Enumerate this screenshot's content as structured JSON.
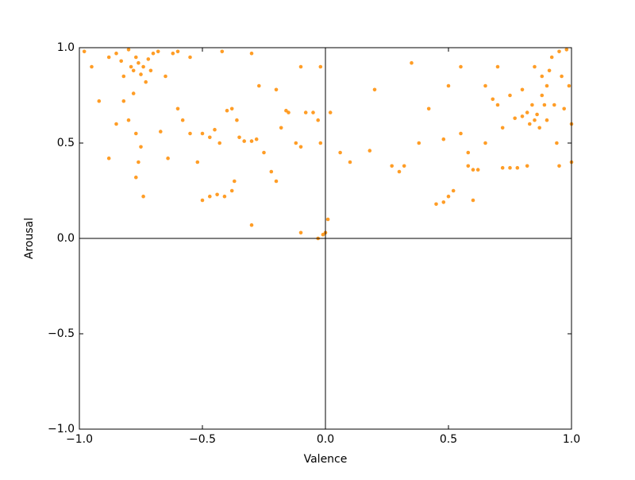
{
  "chart_data": {
    "type": "scatter",
    "x_label": "Valence",
    "y_label": "Arousal",
    "color": "#ff8c00",
    "xlim": [
      -1,
      1
    ],
    "ylim": [
      -1,
      1
    ],
    "xticks": [
      {
        "value": -1,
        "label": "−1.0"
      },
      {
        "value": -0.5,
        "label": "−0.5"
      },
      {
        "value": 0,
        "label": "0.0"
      },
      {
        "value": 0.5,
        "label": "0.5"
      },
      {
        "value": 1,
        "label": "1.0"
      }
    ],
    "yticks": [
      {
        "value": -1,
        "label": "−1.0"
      },
      {
        "value": -0.5,
        "label": "−0.5"
      },
      {
        "value": 0,
        "label": "0.0"
      },
      {
        "value": 0.5,
        "label": "0.5"
      },
      {
        "value": 1,
        "label": "1.0"
      }
    ],
    "x": [
      -0.98,
      -0.95,
      -0.92,
      -0.88,
      -0.85,
      -0.83,
      -0.82,
      -0.8,
      -0.79,
      -0.78,
      -0.77,
      -0.76,
      -0.75,
      -0.74,
      -0.73,
      -0.72,
      -0.71,
      -0.7,
      -0.78,
      -0.82,
      -0.8,
      -0.77,
      -0.75,
      -0.76,
      -0.77,
      -0.74,
      -0.85,
      -0.88,
      -0.68,
      -0.65,
      -0.62,
      -0.6,
      -0.67,
      -0.64,
      -0.6,
      -0.58,
      -0.55,
      -0.52,
      -0.5,
      -0.47,
      -0.44,
      -0.41,
      -0.38,
      -0.37,
      -0.5,
      -0.47,
      -0.45,
      -0.43,
      -0.4,
      -0.38,
      -0.36,
      -0.35,
      -0.33,
      -0.3,
      -0.28,
      -0.25,
      -0.22,
      -0.2,
      -0.18,
      -0.16,
      -0.15,
      -0.12,
      -0.1,
      -0.08,
      -0.05,
      -0.03,
      -0.02,
      -0.01,
      0.0,
      -0.03,
      -0.1,
      -0.3,
      -0.42,
      -0.3,
      -0.55,
      -0.27,
      -0.2,
      -0.1,
      -0.02,
      0.01,
      0.02,
      0.06,
      0.1,
      0.18,
      0.2,
      0.27,
      0.3,
      0.32,
      0.35,
      0.38,
      0.42,
      0.45,
      0.48,
      0.5,
      0.5,
      0.52,
      0.48,
      0.55,
      0.55,
      0.58,
      0.58,
      0.6,
      0.62,
      0.6,
      0.65,
      0.65,
      0.68,
      0.7,
      0.72,
      0.72,
      0.75,
      0.78,
      0.77,
      0.8,
      0.82,
      0.83,
      0.84,
      0.85,
      0.86,
      0.87,
      0.88,
      0.88,
      0.89,
      0.9,
      0.9,
      0.91,
      0.92,
      0.93,
      0.94,
      0.95,
      0.96,
      0.98,
      0.99,
      1.0,
      1.0,
      0.97,
      0.95,
      0.82,
      0.85,
      0.8,
      0.75,
      0.7
    ],
    "y": [
      0.98,
      0.9,
      0.72,
      0.95,
      0.97,
      0.93,
      0.85,
      0.99,
      0.9,
      0.88,
      0.95,
      0.92,
      0.86,
      0.9,
      0.82,
      0.94,
      0.88,
      0.97,
      0.76,
      0.72,
      0.62,
      0.55,
      0.48,
      0.4,
      0.32,
      0.22,
      0.6,
      0.42,
      0.98,
      0.85,
      0.97,
      0.98,
      0.56,
      0.42,
      0.68,
      0.62,
      0.55,
      0.4,
      0.2,
      0.22,
      0.23,
      0.22,
      0.25,
      0.3,
      0.55,
      0.53,
      0.57,
      0.5,
      0.67,
      0.68,
      0.62,
      0.53,
      0.51,
      0.51,
      0.52,
      0.45,
      0.35,
      0.3,
      0.58,
      0.67,
      0.66,
      0.5,
      0.48,
      0.66,
      0.66,
      0.62,
      0.5,
      0.02,
      0.03,
      0.0,
      0.03,
      0.07,
      0.98,
      0.97,
      0.95,
      0.8,
      0.78,
      0.9,
      0.9,
      0.1,
      0.66,
      0.45,
      0.4,
      0.46,
      0.78,
      0.38,
      0.35,
      0.38,
      0.92,
      0.5,
      0.68,
      0.18,
      0.19,
      0.22,
      0.8,
      0.25,
      0.52,
      0.55,
      0.9,
      0.45,
      0.38,
      0.36,
      0.36,
      0.2,
      0.5,
      0.8,
      0.73,
      0.7,
      0.58,
      0.37,
      0.37,
      0.37,
      0.63,
      0.64,
      0.66,
      0.6,
      0.7,
      0.62,
      0.65,
      0.58,
      0.75,
      0.85,
      0.7,
      0.8,
      0.62,
      0.88,
      0.95,
      0.7,
      0.5,
      0.98,
      0.85,
      0.99,
      0.8,
      0.6,
      0.4,
      0.68,
      0.38,
      0.38,
      0.9,
      0.78,
      0.75,
      0.9
    ]
  }
}
